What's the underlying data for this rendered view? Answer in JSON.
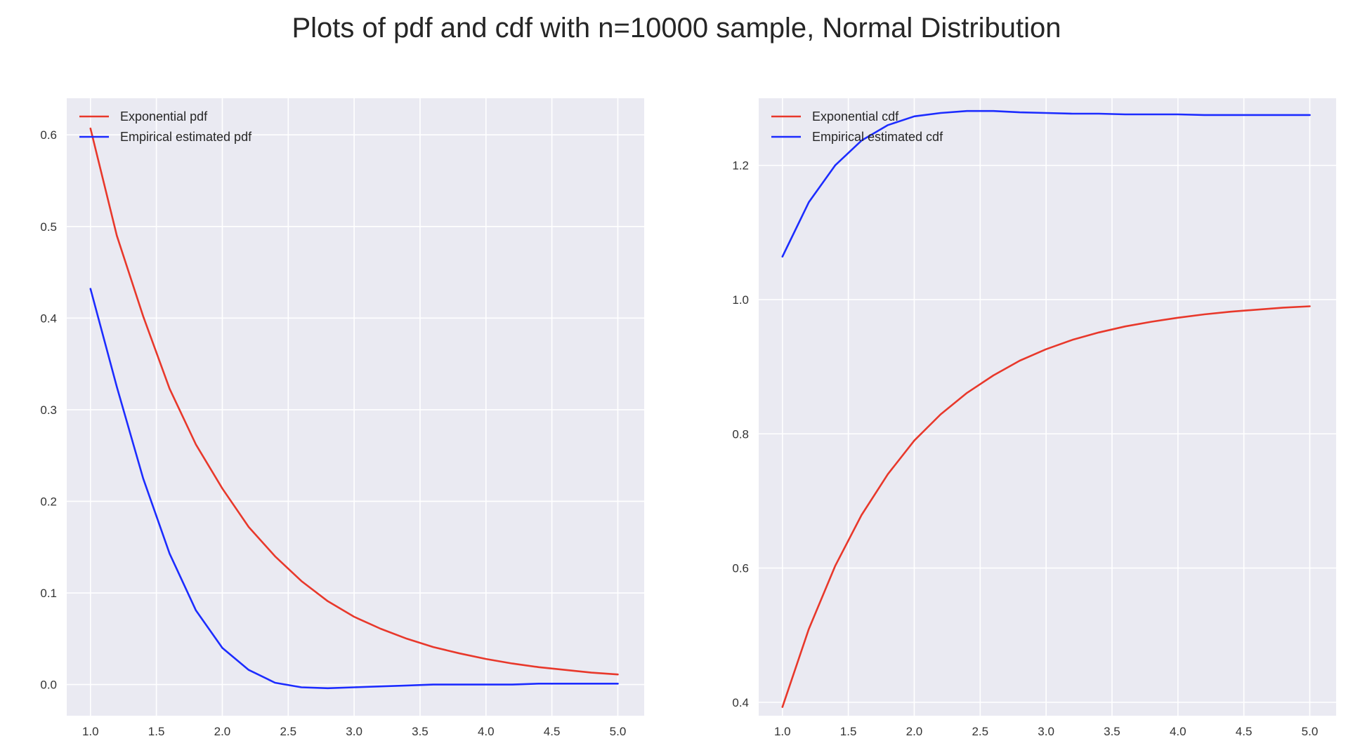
{
  "figure": {
    "title": "Plots of pdf and cdf with n=10000 sample, Normal Distribution"
  },
  "colors": {
    "axes_background": "#eaeaf2",
    "grid": "#ffffff",
    "red_series": "#e8382b",
    "blue_series": "#1c2cff"
  },
  "chart_data": [
    {
      "type": "line",
      "title": "",
      "xlabel": "",
      "ylabel": "",
      "xlim": [
        0.82,
        5.2
      ],
      "ylim": [
        -0.034,
        0.64
      ],
      "xticks": [
        1.0,
        1.5,
        2.0,
        2.5,
        3.0,
        3.5,
        4.0,
        4.5,
        5.0
      ],
      "xtick_labels": [
        "1.0",
        "1.5",
        "2.0",
        "2.5",
        "3.0",
        "3.5",
        "4.0",
        "4.5",
        "5.0"
      ],
      "yticks": [
        0.0,
        0.1,
        0.2,
        0.3,
        0.4,
        0.5,
        0.6
      ],
      "ytick_labels": [
        "0.0",
        "0.1",
        "0.2",
        "0.3",
        "0.4",
        "0.5",
        "0.6"
      ],
      "grid": true,
      "legend_position": "top-left",
      "x": [
        1.0,
        1.2,
        1.4,
        1.6,
        1.8,
        2.0,
        2.2,
        2.4,
        2.6,
        2.8,
        3.0,
        3.2,
        3.4,
        3.6,
        3.8,
        4.0,
        4.2,
        4.4,
        4.6,
        4.8,
        5.0
      ],
      "series": [
        {
          "name": "Exponential pdf",
          "color": "#e8382b",
          "values": [
            0.607,
            0.49,
            0.402,
            0.323,
            0.262,
            0.214,
            0.172,
            0.14,
            0.113,
            0.091,
            0.074,
            0.061,
            0.05,
            0.041,
            0.034,
            0.028,
            0.023,
            0.019,
            0.016,
            0.013,
            0.011
          ]
        },
        {
          "name": "Empirical estimated pdf",
          "color": "#1c2cff",
          "values": [
            0.432,
            0.325,
            0.225,
            0.143,
            0.081,
            0.04,
            0.016,
            0.002,
            -0.003,
            -0.004,
            -0.003,
            -0.002,
            -0.001,
            0.0,
            0.0,
            0.0,
            0.0,
            0.001,
            0.001,
            0.001,
            0.001
          ]
        }
      ]
    },
    {
      "type": "line",
      "title": "",
      "xlabel": "",
      "ylabel": "",
      "xlim": [
        0.82,
        5.2
      ],
      "ylim": [
        0.38,
        1.3
      ],
      "xticks": [
        1.0,
        1.5,
        2.0,
        2.5,
        3.0,
        3.5,
        4.0,
        4.5,
        5.0
      ],
      "xtick_labels": [
        "1.0",
        "1.5",
        "2.0",
        "2.5",
        "3.0",
        "3.5",
        "4.0",
        "4.5",
        "5.0"
      ],
      "yticks": [
        0.4,
        0.6,
        0.8,
        1.0,
        1.2
      ],
      "ytick_labels": [
        "0.4",
        "0.6",
        "0.8",
        "1.0",
        "1.2"
      ],
      "grid": true,
      "legend_position": "top-left",
      "x": [
        1.0,
        1.2,
        1.4,
        1.6,
        1.8,
        2.0,
        2.2,
        2.4,
        2.6,
        2.8,
        3.0,
        3.2,
        3.4,
        3.6,
        3.8,
        4.0,
        4.2,
        4.4,
        4.6,
        4.8,
        5.0
      ],
      "series": [
        {
          "name": "Exponential cdf",
          "color": "#e8382b",
          "values": [
            0.393,
            0.509,
            0.603,
            0.679,
            0.74,
            0.79,
            0.829,
            0.861,
            0.887,
            0.909,
            0.926,
            0.94,
            0.951,
            0.96,
            0.967,
            0.973,
            0.978,
            0.982,
            0.985,
            0.988,
            0.99
          ]
        },
        {
          "name": "Empirical estimated cdf",
          "color": "#1c2cff",
          "values": [
            1.064,
            1.145,
            1.2,
            1.237,
            1.26,
            1.273,
            1.278,
            1.281,
            1.281,
            1.279,
            1.278,
            1.277,
            1.277,
            1.276,
            1.276,
            1.276,
            1.275,
            1.275,
            1.275,
            1.275,
            1.275
          ]
        }
      ]
    }
  ]
}
